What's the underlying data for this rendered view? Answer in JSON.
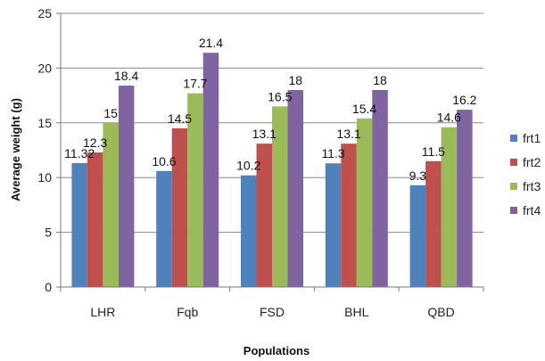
{
  "chart_data": {
    "type": "bar",
    "categories": [
      "LHR",
      "Fqb",
      "FSD",
      "BHL",
      "QBD"
    ],
    "series": [
      {
        "name": "frt1",
        "values": [
          11.32,
          10.6,
          10.2,
          11.3,
          9.3
        ],
        "labels": [
          "11.32",
          "10.6",
          "10.2",
          "11.3",
          "9.3"
        ],
        "color": "#4F81BD"
      },
      {
        "name": "frt2",
        "values": [
          12.3,
          14.5,
          13.1,
          13.1,
          11.5
        ],
        "labels": [
          "12.3",
          "14.5",
          "13.1",
          "13.1",
          "11.5"
        ],
        "color": "#C0504D"
      },
      {
        "name": "frt3",
        "values": [
          15,
          17.7,
          16.5,
          15.4,
          14.6
        ],
        "labels": [
          "15",
          "17.7",
          "16.5",
          "15.4",
          "14.6"
        ],
        "color": "#9BBB59"
      },
      {
        "name": "frt4",
        "values": [
          18.4,
          21.4,
          18,
          18,
          16.2
        ],
        "labels": [
          "18.4",
          "21.4",
          "18",
          "18",
          "16.2"
        ],
        "color": "#8064A2"
      }
    ],
    "xlabel": "Populations",
    "ylabel": "Average weight (g)",
    "ylim": [
      0,
      25
    ],
    "yticks": [
      0,
      5,
      10,
      15,
      20,
      25
    ],
    "grid": true,
    "legend": "right"
  }
}
